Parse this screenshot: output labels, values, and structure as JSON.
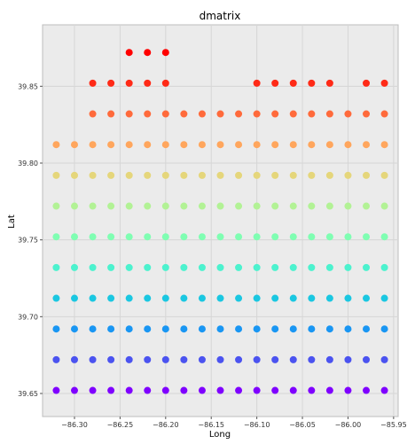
{
  "chart_data": {
    "type": "scatter",
    "title": "dmatrix",
    "xlabel": "Long",
    "ylabel": "Lat",
    "xlim": [
      -86.335,
      -85.945
    ],
    "ylim": [
      39.635,
      39.89
    ],
    "x_ticks": [
      -86.3,
      -86.25,
      -86.2,
      -86.15,
      -86.1,
      -86.05,
      -86.0,
      -85.95
    ],
    "x_tick_labels": [
      "−86.30",
      "−86.25",
      "−86.20",
      "−86.15",
      "−86.10",
      "−86.05",
      "−86.00",
      "−85.95"
    ],
    "y_ticks": [
      39.65,
      39.7,
      39.75,
      39.8,
      39.85
    ],
    "y_tick_labels": [
      "39.65",
      "39.70",
      "39.75",
      "39.80",
      "39.85"
    ],
    "grid": true,
    "colormap": "rainbow",
    "background_color": "#ebebeb",
    "rows": [
      {
        "lat": 39.652,
        "color": "#7f00ff",
        "x": [
          -86.32,
          -86.3,
          -86.28,
          -86.26,
          -86.24,
          -86.22,
          -86.2,
          -86.18,
          -86.16,
          -86.14,
          -86.12,
          -86.1,
          -86.08,
          -86.06,
          -86.04,
          -86.02,
          -86.0,
          -85.98,
          -85.96
        ]
      },
      {
        "lat": 39.672,
        "color": "#4b53f0",
        "x": [
          -86.32,
          -86.3,
          -86.28,
          -86.26,
          -86.24,
          -86.22,
          -86.2,
          -86.18,
          -86.16,
          -86.14,
          -86.12,
          -86.1,
          -86.08,
          -86.06,
          -86.04,
          -86.02,
          -86.0,
          -85.98,
          -85.96
        ]
      },
      {
        "lat": 39.692,
        "color": "#1996f3",
        "x": [
          -86.32,
          -86.3,
          -86.28,
          -86.26,
          -86.24,
          -86.22,
          -86.2,
          -86.18,
          -86.16,
          -86.14,
          -86.12,
          -86.1,
          -86.08,
          -86.06,
          -86.04,
          -86.02,
          -86.0,
          -85.98,
          -85.96
        ]
      },
      {
        "lat": 39.712,
        "color": "#1ac7e1",
        "x": [
          -86.32,
          -86.3,
          -86.28,
          -86.26,
          -86.24,
          -86.22,
          -86.2,
          -86.18,
          -86.16,
          -86.14,
          -86.12,
          -86.1,
          -86.08,
          -86.06,
          -86.04,
          -86.02,
          -86.0,
          -85.98,
          -85.96
        ]
      },
      {
        "lat": 39.732,
        "color": "#4cf2ce",
        "x": [
          -86.32,
          -86.3,
          -86.28,
          -86.26,
          -86.24,
          -86.22,
          -86.2,
          -86.18,
          -86.16,
          -86.14,
          -86.12,
          -86.1,
          -86.08,
          -86.06,
          -86.04,
          -86.02,
          -86.0,
          -85.98,
          -85.96
        ]
      },
      {
        "lat": 39.752,
        "color": "#7ffeb2",
        "x": [
          -86.32,
          -86.3,
          -86.28,
          -86.26,
          -86.24,
          -86.22,
          -86.2,
          -86.18,
          -86.16,
          -86.14,
          -86.12,
          -86.1,
          -86.08,
          -86.06,
          -86.04,
          -86.02,
          -86.0,
          -85.98,
          -85.96
        ]
      },
      {
        "lat": 39.772,
        "color": "#b2f295",
        "x": [
          -86.32,
          -86.3,
          -86.28,
          -86.26,
          -86.24,
          -86.22,
          -86.2,
          -86.18,
          -86.16,
          -86.14,
          -86.12,
          -86.1,
          -86.08,
          -86.06,
          -86.04,
          -86.02,
          -86.0,
          -85.98,
          -85.96
        ]
      },
      {
        "lat": 39.792,
        "color": "#e5d67b",
        "x": [
          -86.32,
          -86.3,
          -86.28,
          -86.26,
          -86.24,
          -86.22,
          -86.2,
          -86.18,
          -86.16,
          -86.14,
          -86.12,
          -86.1,
          -86.08,
          -86.06,
          -86.04,
          -86.02,
          -86.0,
          -85.98,
          -85.96
        ]
      },
      {
        "lat": 39.812,
        "color": "#ffa65d",
        "x": [
          -86.32,
          -86.3,
          -86.28,
          -86.26,
          -86.24,
          -86.22,
          -86.2,
          -86.18,
          -86.16,
          -86.14,
          -86.12,
          -86.1,
          -86.08,
          -86.06,
          -86.04,
          -86.02,
          -86.0,
          -85.98,
          -85.96
        ]
      },
      {
        "lat": 39.832,
        "color": "#ff6a3b",
        "x": [
          -86.28,
          -86.26,
          -86.24,
          -86.22,
          -86.2,
          -86.18,
          -86.16,
          -86.14,
          -86.12,
          -86.1,
          -86.08,
          -86.06,
          -86.04,
          -86.02,
          -86.0,
          -85.98,
          -85.96
        ]
      },
      {
        "lat": 39.852,
        "color": "#ff2a17",
        "x": [
          -86.28,
          -86.26,
          -86.24,
          -86.22,
          -86.2,
          -86.1,
          -86.08,
          -86.06,
          -86.04,
          -86.02,
          -85.98,
          -85.96
        ]
      },
      {
        "lat": 39.872,
        "color": "#ff0000",
        "x": [
          -86.24,
          -86.22,
          -86.2
        ]
      }
    ]
  }
}
